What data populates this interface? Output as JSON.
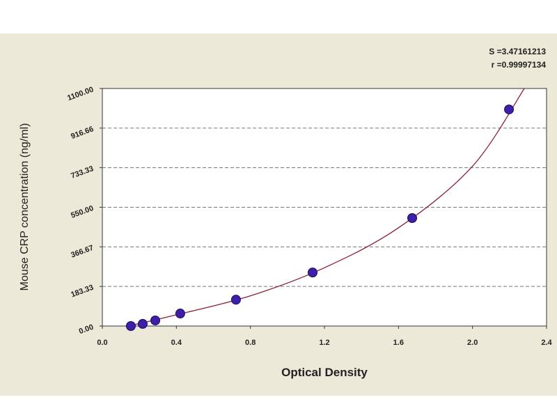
{
  "chart_data": {
    "type": "scatter",
    "annotations": [
      "S =3.47161213",
      "r =0.99997134"
    ],
    "x_label": "Optical Density",
    "y_label": "Mouse CRP concentration (ng/ml)",
    "xlim": [
      0,
      2.4
    ],
    "ylim": [
      0,
      1100
    ],
    "xticks": [
      {
        "value": 0,
        "label": "0.0"
      },
      0.4,
      0.8,
      1.2,
      1.6,
      {
        "value": 2,
        "label": "2.0"
      },
      2.4
    ],
    "yticks": [
      {
        "value": 0,
        "label": "0.00"
      },
      {
        "value": 183.33,
        "label": "183.33"
      },
      {
        "value": 366.67,
        "label": "366.67"
      },
      {
        "value": 550,
        "label": "550.00"
      },
      {
        "value": 733.33,
        "label": "733.33"
      },
      {
        "value": 916.66,
        "label": "916.66"
      },
      {
        "value": 1100,
        "label": "1100.00"
      }
    ],
    "grid": true,
    "points": {
      "color": "#3d1fa8",
      "x": [
        0.154,
        0.218,
        0.286,
        0.421,
        0.722,
        1.136,
        1.674,
        2.197
      ],
      "values": [
        0,
        10,
        26,
        58,
        122,
        248,
        500,
        1003
      ]
    },
    "fit": {
      "color": "#8b2035",
      "x": [
        0.14,
        0.4,
        0.8,
        1.2,
        1.6,
        2.0,
        2.28
      ],
      "values": [
        0,
        52,
        140,
        270,
        455,
        740,
        1100
      ]
    }
  }
}
